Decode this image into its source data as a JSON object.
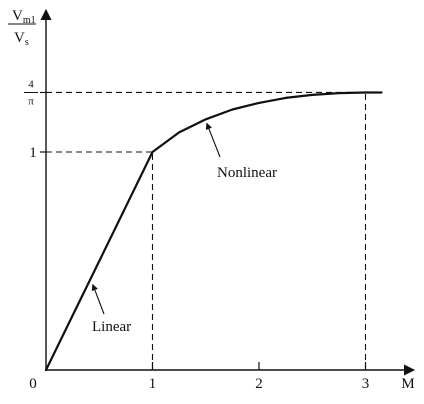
{
  "chart_data": {
    "type": "line",
    "title": "",
    "xlabel": "M",
    "ylabel": {
      "numerator": "V",
      "numerator_sub": "m1",
      "denominator": "V",
      "denominator_sub": "s"
    },
    "xlim": [
      0,
      3.5
    ],
    "ylim": [
      0,
      1.5
    ],
    "x_ticks": [
      {
        "value": 0,
        "label": "0"
      },
      {
        "value": 1,
        "label": "1"
      },
      {
        "value": 2,
        "label": "2"
      },
      {
        "value": 3,
        "label": "3"
      }
    ],
    "y_ticks": [
      {
        "value": 1,
        "label": "1"
      },
      {
        "value": 1.273,
        "label_numerator": "4",
        "label_denominator": "π"
      }
    ],
    "grid": false,
    "series": [
      {
        "x": [
          0,
          0.25,
          0.5,
          0.75,
          1.0,
          1.25,
          1.5,
          1.75,
          2.0,
          2.25,
          2.5,
          2.75,
          3.0,
          3.15
        ],
        "y": [
          0,
          0.25,
          0.5,
          0.75,
          1.0,
          1.09,
          1.15,
          1.195,
          1.225,
          1.248,
          1.262,
          1.27,
          1.273,
          1.273
        ]
      }
    ],
    "reference_lines": [
      {
        "from": [
          0,
          1
        ],
        "to": [
          1,
          1
        ]
      },
      {
        "from": [
          1,
          0
        ],
        "to": [
          1,
          1
        ]
      },
      {
        "from": [
          0,
          1.273
        ],
        "to": [
          3,
          1.273
        ]
      },
      {
        "from": [
          3,
          0
        ],
        "to": [
          3,
          1.273
        ]
      }
    ],
    "annotations": [
      {
        "text": "Linear",
        "point": [
          0.42,
          0.42
        ]
      },
      {
        "text": "Nonlinear",
        "point": [
          1.5,
          1.15
        ]
      }
    ]
  }
}
